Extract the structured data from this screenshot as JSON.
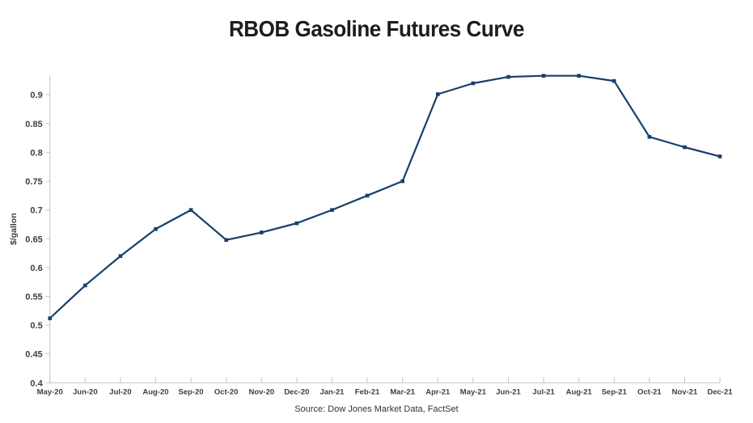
{
  "title": "RBOB Gasoline Futures Curve",
  "source": "Source: Dow Jones Market Data, FactSet",
  "colors": {
    "line": "#17406b",
    "marker": "#17406b",
    "axis": "#c6c6c6",
    "tick_label": "#404040",
    "title_text": "#1d1d1d",
    "source_text": "#333333"
  },
  "chart_data": {
    "type": "line",
    "title": "RBOB Gasoline Futures Curve",
    "x": [
      "May-20",
      "Jun-20",
      "Jul-20",
      "Aug-20",
      "Sep-20",
      "Oct-20",
      "Nov-20",
      "Dec-20",
      "Jan-21",
      "Feb-21",
      "Mar-21",
      "Apr-21",
      "May-21",
      "Jun-21",
      "Jul-21",
      "Aug-21",
      "Sep-21",
      "Oct-21",
      "Nov-21",
      "Dec-21"
    ],
    "series": [
      {
        "name": "RBOB Gasoline Futures",
        "values": [
          0.512,
          0.569,
          0.62,
          0.667,
          0.7,
          0.648,
          0.661,
          0.677,
          0.7,
          0.725,
          0.75,
          0.901,
          0.92,
          0.931,
          0.933,
          0.933,
          0.924,
          0.827,
          0.809,
          0.793
        ]
      }
    ],
    "xlabel": "",
    "ylabel": "$/gallon",
    "yticks": [
      0.4,
      0.45,
      0.5,
      0.55,
      0.6,
      0.65,
      0.7,
      0.75,
      0.8,
      0.85,
      0.9
    ],
    "ylim": [
      0.4,
      0.934
    ],
    "grid": false,
    "legend_position": "none",
    "marker": "square"
  }
}
